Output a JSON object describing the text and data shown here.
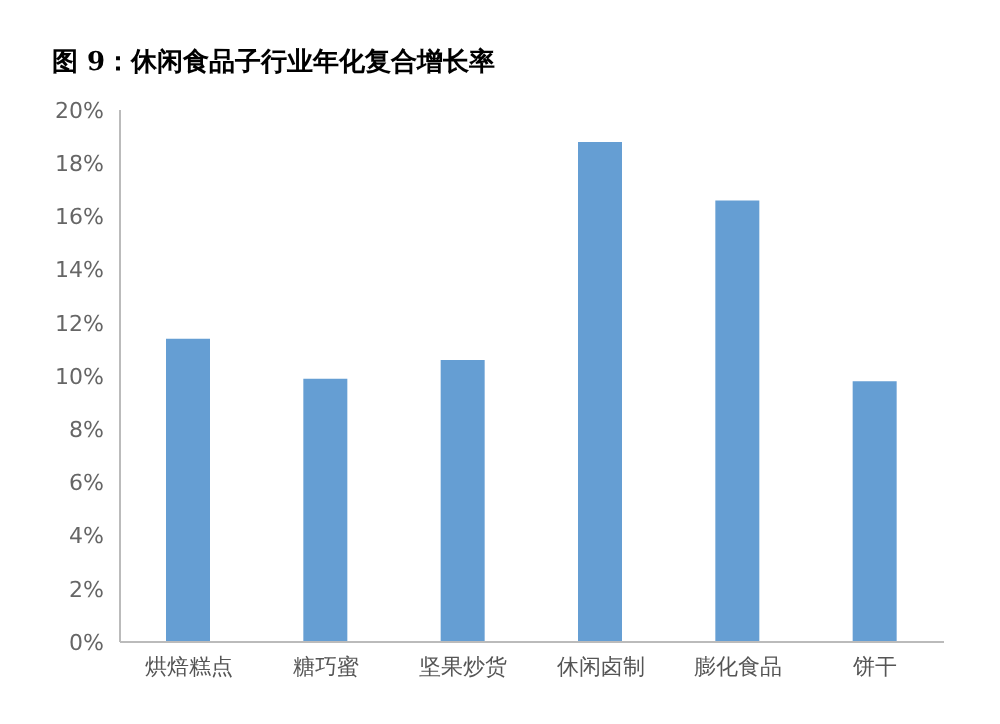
{
  "chart_data": {
    "type": "bar",
    "title": "图 9：休闲食品子行业年化复合增长率",
    "categories": [
      "烘焙糕点",
      "糖巧蜜",
      "坚果炒货",
      "休闲卤制",
      "膨化食品",
      "饼干"
    ],
    "values": [
      11.4,
      9.9,
      10.6,
      18.8,
      16.6,
      9.8
    ],
    "color": "#659ed3",
    "ylim": [
      0,
      20
    ],
    "yticks": [
      {
        "value": 0,
        "label": "0%"
      },
      {
        "value": 2,
        "label": "2%"
      },
      {
        "value": 4,
        "label": "4%"
      },
      {
        "value": 6,
        "label": "6%"
      },
      {
        "value": 8,
        "label": "8%"
      },
      {
        "value": 10,
        "label": "10%"
      },
      {
        "value": 12,
        "label": "12%"
      },
      {
        "value": 14,
        "label": "14%"
      },
      {
        "value": 16,
        "label": "16%"
      },
      {
        "value": 18,
        "label": "18%"
      },
      {
        "value": 20,
        "label": "20%"
      }
    ],
    "grid": false,
    "legend": false
  }
}
